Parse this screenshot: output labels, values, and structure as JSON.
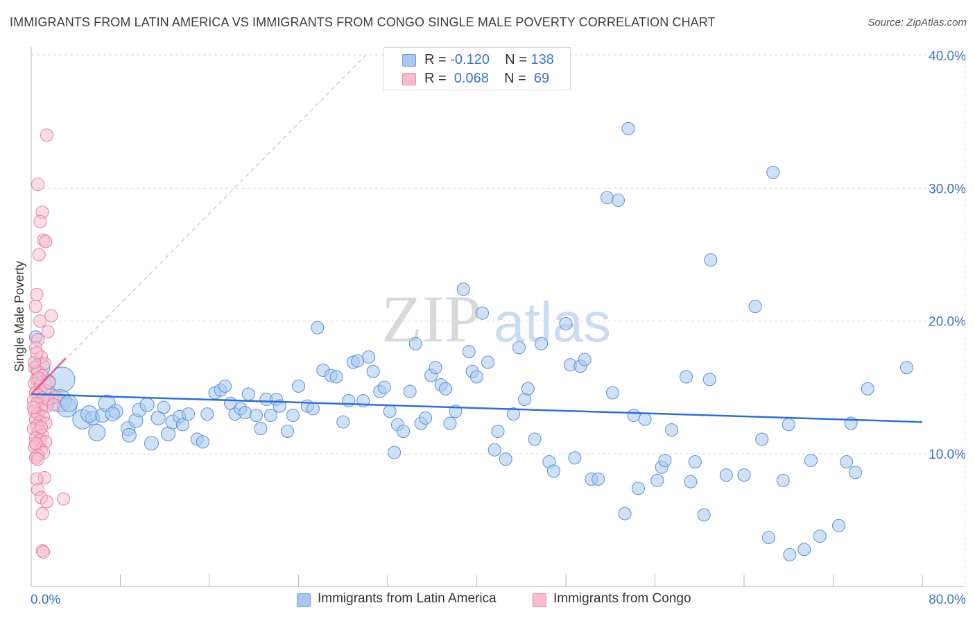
{
  "title": "IMMIGRANTS FROM LATIN AMERICA VS IMMIGRANTS FROM CONGO SINGLE MALE POVERTY CORRELATION CHART",
  "source": "Source: ZipAtlas.com",
  "watermark": {
    "part1": "ZIP",
    "part2": "atlas"
  },
  "legend_top": [
    {
      "r_label": "R = ",
      "r_value": "-0.120",
      "n_label": "N = ",
      "n_value": "138",
      "color": "#a8c8f0",
      "border": "#6f9fd8"
    },
    {
      "r_label": "R = ",
      "r_value": " 0.068",
      "n_label": "N = ",
      "n_value": " 69",
      "color": "#f8bcd0",
      "border": "#e889a8"
    }
  ],
  "legend_bottom": [
    {
      "label": "Immigrants from Latin America",
      "color": "#a8c8f0",
      "border": "#6f9fd8"
    },
    {
      "label": "Immigrants from Congo",
      "color": "#f8bcd0",
      "border": "#e889a8"
    }
  ],
  "chart_data": {
    "type": "scatter",
    "title": "IMMIGRANTS FROM LATIN AMERICA VS IMMIGRANTS FROM CONGO SINGLE MALE POVERTY CORRELATION CHART",
    "xlabel": "",
    "ylabel": "Single Male Poverty",
    "xlim": [
      0,
      80
    ],
    "ylim": [
      0,
      42
    ],
    "x_tick_labels": [
      "0.0%",
      "80.0%"
    ],
    "y_ticks": [
      10,
      20,
      30,
      40
    ],
    "y_tick_labels": [
      "10.0%",
      "20.0%",
      "30.0%",
      "40.0%"
    ],
    "grid": true,
    "colors": {
      "blue": "#a8c8f0",
      "blue_edge": "#5b8fd6",
      "blue_line": "#2f6fd0",
      "pink": "#f8bcd0",
      "pink_edge": "#e77fa2",
      "pink_line": "#e8598a",
      "axis_text": "#3c74c8"
    },
    "series": [
      {
        "name": "Immigrants from Latin America",
        "trend": {
          "x": [
            0,
            80
          ],
          "y": [
            14.5,
            12.4
          ]
        },
        "points": [
          [
            0.4,
            18.8
          ],
          [
            0.8,
            16.5
          ],
          [
            2.8,
            15.6
          ],
          [
            1.5,
            15.4
          ],
          [
            2.6,
            14.0
          ],
          [
            3.2,
            13.5
          ],
          [
            3.4,
            13.8
          ],
          [
            4.6,
            12.6
          ],
          [
            5.5,
            12.7
          ],
          [
            5.2,
            13.0
          ],
          [
            6.4,
            12.9
          ],
          [
            5.9,
            11.6
          ],
          [
            6.8,
            13.8
          ],
          [
            7.6,
            13.2
          ],
          [
            7.3,
            13.0
          ],
          [
            8.7,
            11.9
          ],
          [
            9.4,
            12.5
          ],
          [
            8.8,
            11.4
          ],
          [
            9.7,
            13.3
          ],
          [
            10.4,
            13.7
          ],
          [
            10.8,
            10.8
          ],
          [
            11.4,
            12.7
          ],
          [
            11.9,
            13.5
          ],
          [
            12.3,
            11.5
          ],
          [
            12.7,
            12.4
          ],
          [
            13.3,
            12.8
          ],
          [
            13.6,
            12.2
          ],
          [
            14.1,
            13.0
          ],
          [
            14.9,
            11.1
          ],
          [
            15.4,
            10.9
          ],
          [
            15.8,
            13.0
          ],
          [
            16.5,
            14.6
          ],
          [
            17.0,
            14.8
          ],
          [
            17.4,
            15.1
          ],
          [
            17.9,
            13.8
          ],
          [
            18.3,
            13.0
          ],
          [
            18.8,
            13.4
          ],
          [
            19.2,
            13.1
          ],
          [
            19.5,
            14.5
          ],
          [
            20.2,
            12.9
          ],
          [
            20.6,
            11.9
          ],
          [
            21.1,
            14.1
          ],
          [
            21.5,
            12.9
          ],
          [
            22.0,
            14.1
          ],
          [
            22.3,
            13.6
          ],
          [
            23.0,
            11.7
          ],
          [
            23.5,
            12.9
          ],
          [
            24.0,
            15.1
          ],
          [
            24.8,
            13.6
          ],
          [
            25.3,
            13.4
          ],
          [
            25.7,
            19.5
          ],
          [
            26.2,
            16.3
          ],
          [
            26.9,
            15.9
          ],
          [
            27.4,
            15.8
          ],
          [
            28.0,
            12.4
          ],
          [
            28.5,
            14.0
          ],
          [
            28.9,
            16.9
          ],
          [
            29.3,
            17.0
          ],
          [
            29.8,
            14.0
          ],
          [
            30.3,
            17.3
          ],
          [
            30.7,
            16.2
          ],
          [
            31.3,
            14.7
          ],
          [
            31.7,
            15.0
          ],
          [
            32.2,
            13.2
          ],
          [
            32.6,
            10.1
          ],
          [
            32.9,
            12.2
          ],
          [
            33.4,
            11.7
          ],
          [
            34.0,
            14.7
          ],
          [
            34.5,
            18.3
          ],
          [
            35.0,
            12.3
          ],
          [
            35.4,
            12.7
          ],
          [
            35.9,
            15.9
          ],
          [
            36.3,
            16.5
          ],
          [
            36.8,
            15.2
          ],
          [
            37.2,
            14.9
          ],
          [
            37.6,
            12.3
          ],
          [
            38.1,
            13.2
          ],
          [
            38.8,
            22.4
          ],
          [
            39.3,
            17.7
          ],
          [
            39.6,
            16.2
          ],
          [
            40.0,
            15.8
          ],
          [
            40.5,
            20.6
          ],
          [
            41.0,
            16.9
          ],
          [
            41.6,
            10.3
          ],
          [
            41.9,
            11.7
          ],
          [
            42.6,
            9.6
          ],
          [
            43.3,
            13.0
          ],
          [
            43.8,
            18.0
          ],
          [
            44.3,
            14.1
          ],
          [
            44.6,
            14.9
          ],
          [
            45.2,
            11.1
          ],
          [
            45.8,
            18.3
          ],
          [
            46.5,
            9.4
          ],
          [
            46.9,
            8.7
          ],
          [
            48.0,
            19.8
          ],
          [
            48.4,
            16.7
          ],
          [
            48.8,
            9.7
          ],
          [
            49.3,
            16.6
          ],
          [
            49.7,
            17.1
          ],
          [
            50.3,
            8.1
          ],
          [
            50.9,
            8.1
          ],
          [
            51.7,
            29.3
          ],
          [
            52.2,
            14.6
          ],
          [
            52.7,
            29.1
          ],
          [
            53.3,
            5.5
          ],
          [
            53.6,
            34.5
          ],
          [
            54.1,
            12.9
          ],
          [
            54.5,
            7.4
          ],
          [
            55.1,
            12.6
          ],
          [
            56.2,
            8.0
          ],
          [
            56.6,
            9.0
          ],
          [
            56.9,
            9.5
          ],
          [
            57.5,
            11.8
          ],
          [
            58.8,
            15.8
          ],
          [
            59.2,
            7.9
          ],
          [
            59.6,
            9.4
          ],
          [
            60.4,
            5.4
          ],
          [
            60.9,
            15.6
          ],
          [
            61.0,
            24.6
          ],
          [
            62.4,
            8.4
          ],
          [
            64.0,
            8.4
          ],
          [
            65.0,
            21.1
          ],
          [
            65.6,
            11.1
          ],
          [
            66.2,
            3.7
          ],
          [
            66.6,
            31.2
          ],
          [
            67.5,
            8.0
          ],
          [
            68.1,
            2.4
          ],
          [
            68.0,
            12.2
          ],
          [
            69.4,
            2.8
          ],
          [
            70.0,
            9.5
          ],
          [
            70.8,
            3.8
          ],
          [
            72.5,
            4.6
          ],
          [
            73.2,
            9.4
          ],
          [
            73.6,
            12.3
          ],
          [
            74.0,
            8.6
          ],
          [
            75.1,
            14.9
          ],
          [
            78.6,
            16.5
          ],
          [
            1.8,
            14.3
          ]
        ],
        "sizes": [
          9,
          14,
          18,
          11,
          16,
          14,
          12,
          14,
          10,
          12,
          10,
          12,
          12,
          10,
          10,
          10,
          10,
          10,
          10,
          10,
          10,
          10,
          9,
          10,
          10,
          9,
          9,
          9,
          9,
          9,
          9,
          9,
          9,
          9,
          9,
          9,
          9,
          9,
          9,
          9,
          9,
          9,
          9,
          9,
          9,
          9,
          9,
          9,
          9,
          9,
          9,
          9,
          9,
          9,
          9,
          9,
          9,
          9,
          9,
          9,
          9,
          9,
          9,
          9,
          9,
          9,
          9,
          9,
          9,
          9,
          9,
          9,
          9,
          9,
          9,
          9,
          9,
          9,
          9,
          9,
          9,
          9,
          9,
          9,
          9,
          9,
          9,
          9,
          9,
          9,
          9,
          9,
          9,
          9,
          9,
          9,
          9,
          9,
          9,
          9,
          9,
          9,
          9,
          9,
          9,
          9,
          9,
          9,
          9,
          9,
          9,
          9,
          9,
          9,
          9,
          9,
          9,
          9,
          9,
          9,
          9,
          9,
          9,
          9,
          9,
          9,
          9,
          9,
          9,
          9,
          9,
          9,
          9,
          9,
          9,
          9,
          9,
          11
        ]
      },
      {
        "name": "Immigrants from Congo",
        "trend": {
          "x": [
            0,
            3.1
          ],
          "y": [
            14.5,
            17.2
          ]
        },
        "dashed_extension": {
          "x": [
            0,
            30
          ],
          "y": [
            14.5,
            40.0
          ]
        },
        "points": [
          [
            1.4,
            34.0
          ],
          [
            0.6,
            30.3
          ],
          [
            1.0,
            28.2
          ],
          [
            0.8,
            27.5
          ],
          [
            1.1,
            26.1
          ],
          [
            1.3,
            26.0
          ],
          [
            0.7,
            25.0
          ],
          [
            0.5,
            22.0
          ],
          [
            0.4,
            21.1
          ],
          [
            1.8,
            20.4
          ],
          [
            0.8,
            20.0
          ],
          [
            1.5,
            19.2
          ],
          [
            0.6,
            18.6
          ],
          [
            0.4,
            18.0
          ],
          [
            0.9,
            17.3
          ],
          [
            1.2,
            16.8
          ],
          [
            0.3,
            16.5
          ],
          [
            0.6,
            16.2
          ],
          [
            1.0,
            15.9
          ],
          [
            0.5,
            15.6
          ],
          [
            0.3,
            15.3
          ],
          [
            0.8,
            15.1
          ],
          [
            1.2,
            14.8
          ],
          [
            0.4,
            14.6
          ],
          [
            0.7,
            14.4
          ],
          [
            1.0,
            14.2
          ],
          [
            0.2,
            14.0
          ],
          [
            0.5,
            13.8
          ],
          [
            1.4,
            13.6
          ],
          [
            0.9,
            13.4
          ],
          [
            0.3,
            13.2
          ],
          [
            0.6,
            13.0
          ],
          [
            1.1,
            12.8
          ],
          [
            0.4,
            12.6
          ],
          [
            0.8,
            12.4
          ],
          [
            1.3,
            12.3
          ],
          [
            0.5,
            12.1
          ],
          [
            0.2,
            11.9
          ],
          [
            0.7,
            11.7
          ],
          [
            1.0,
            11.4
          ],
          [
            0.4,
            11.2
          ],
          [
            0.8,
            11.0
          ],
          [
            1.3,
            10.9
          ],
          [
            0.5,
            10.7
          ],
          [
            0.3,
            10.5
          ],
          [
            0.9,
            10.3
          ],
          [
            1.1,
            10.1
          ],
          [
            0.6,
            9.9
          ],
          [
            0.4,
            9.7
          ],
          [
            1.2,
            8.2
          ],
          [
            0.5,
            8.1
          ],
          [
            0.6,
            7.3
          ],
          [
            0.9,
            6.7
          ],
          [
            1.4,
            6.4
          ],
          [
            2.9,
            6.6
          ],
          [
            1.0,
            5.5
          ],
          [
            1.0,
            2.7
          ],
          [
            1.1,
            2.6
          ],
          [
            0.3,
            16.9
          ],
          [
            0.7,
            15.7
          ],
          [
            2.2,
            14.3
          ],
          [
            0.5,
            17.6
          ],
          [
            1.6,
            15.4
          ],
          [
            0.2,
            13.5
          ],
          [
            0.9,
            12.0
          ],
          [
            1.5,
            14.1
          ],
          [
            0.4,
            10.8
          ],
          [
            0.6,
            9.6
          ],
          [
            2.0,
            13.7
          ]
        ],
        "sizes": [
          9,
          9,
          9,
          9,
          9,
          9,
          9,
          9,
          9,
          9,
          9,
          9,
          9,
          9,
          9,
          9,
          9,
          9,
          9,
          9,
          9,
          9,
          9,
          9,
          9,
          9,
          9,
          9,
          9,
          9,
          9,
          9,
          9,
          9,
          9,
          9,
          9,
          9,
          9,
          9,
          9,
          9,
          9,
          9,
          9,
          9,
          9,
          9,
          9,
          9,
          9,
          9,
          9,
          9,
          9,
          9,
          9,
          9,
          9,
          9,
          9,
          9,
          9,
          9,
          9,
          9,
          9,
          9,
          9
        ]
      }
    ]
  }
}
